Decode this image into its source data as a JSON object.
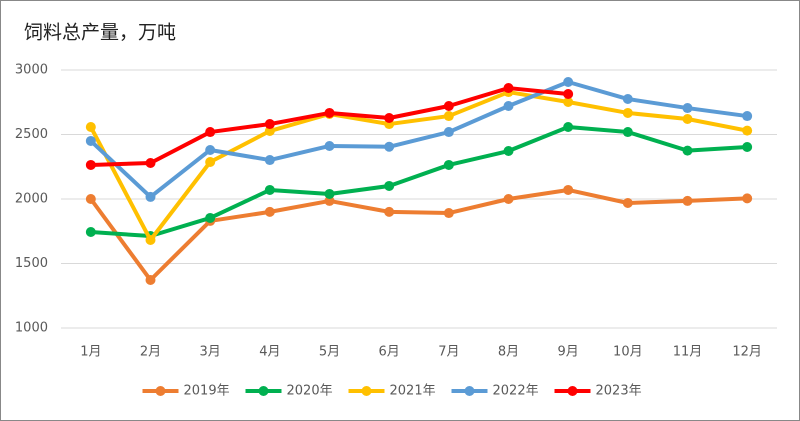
{
  "chart_data": {
    "type": "line",
    "title": "饲料总产量，万吨",
    "categories": [
      "1月",
      "2月",
      "3月",
      "4月",
      "5月",
      "6月",
      "7月",
      "8月",
      "9月",
      "10月",
      "11月",
      "12月"
    ],
    "series": [
      {
        "name": "2019年",
        "color": "#ed7d31",
        "values": [
          2000,
          1372,
          1830,
          1900,
          1985,
          1900,
          1891,
          2000,
          2070,
          1969,
          1985,
          2005
        ]
      },
      {
        "name": "2020年",
        "color": "#00b050",
        "values": [
          1744,
          1713,
          1853,
          2070,
          2039,
          2101,
          2264,
          2372,
          2558,
          2519,
          2375,
          2403
        ]
      },
      {
        "name": "2021年",
        "color": "#ffc000",
        "values": [
          2558,
          1682,
          2287,
          2527,
          2659,
          2581,
          2643,
          2829,
          2752,
          2667,
          2620,
          2530
        ]
      },
      {
        "name": "2022年",
        "color": "#5b9bd5",
        "values": [
          2450,
          2016,
          2380,
          2302,
          2411,
          2405,
          2519,
          2721,
          2907,
          2775,
          2705,
          2643
        ]
      },
      {
        "name": "2023年",
        "color": "#ff0000",
        "values": [
          2264,
          2279,
          2519,
          2581,
          2667,
          2628,
          2721,
          2860,
          2814,
          null,
          null,
          null
        ]
      }
    ],
    "ylim": [
      1000,
      3000
    ],
    "yticks": [
      1000,
      1500,
      2000,
      2500,
      3000
    ],
    "grid": true,
    "legend": "bottom"
  }
}
